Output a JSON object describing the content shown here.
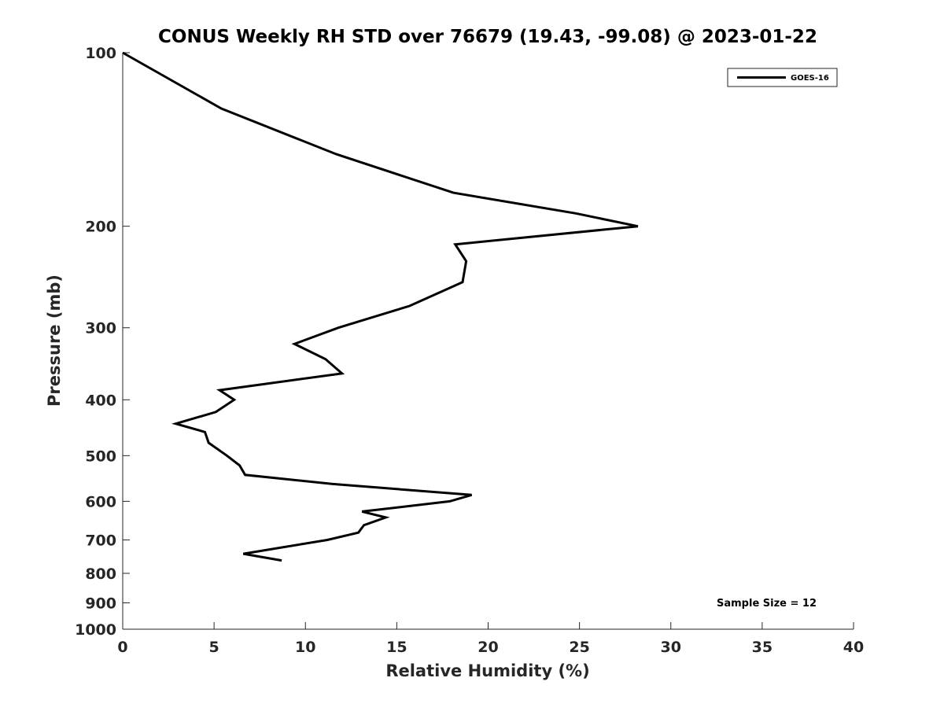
{
  "chart_data": {
    "type": "line",
    "title": "CONUS Weekly RH STD over 76679 (19.43, -99.08) @ 2023-01-22",
    "xlabel": "Relative Humidity (%)",
    "ylabel": "Pressure (mb)",
    "xlim": [
      0,
      40
    ],
    "ylim": [
      1000,
      100
    ],
    "y_scale": "log",
    "y_reversed": true,
    "grid": false,
    "legend_position": "top-right",
    "x_ticks": [
      0,
      5,
      10,
      15,
      20,
      25,
      30,
      35,
      40
    ],
    "y_ticks": [
      100,
      200,
      300,
      400,
      500,
      600,
      700,
      800,
      900,
      1000
    ],
    "series": [
      {
        "name": "GOES-16",
        "color": "#000000",
        "points": [
          {
            "x": 0.0,
            "y": 100
          },
          {
            "x": 5.4,
            "y": 125
          },
          {
            "x": 11.7,
            "y": 150
          },
          {
            "x": 18.1,
            "y": 175
          },
          {
            "x": 24.8,
            "y": 190
          },
          {
            "x": 28.2,
            "y": 200
          },
          {
            "x": 18.2,
            "y": 215
          },
          {
            "x": 18.8,
            "y": 230
          },
          {
            "x": 18.6,
            "y": 250
          },
          {
            "x": 15.7,
            "y": 275
          },
          {
            "x": 11.8,
            "y": 300
          },
          {
            "x": 9.4,
            "y": 320
          },
          {
            "x": 11.1,
            "y": 340
          },
          {
            "x": 12.0,
            "y": 360
          },
          {
            "x": 5.3,
            "y": 385
          },
          {
            "x": 6.1,
            "y": 400
          },
          {
            "x": 5.1,
            "y": 420
          },
          {
            "x": 2.9,
            "y": 440
          },
          {
            "x": 4.5,
            "y": 455
          },
          {
            "x": 4.7,
            "y": 475
          },
          {
            "x": 5.7,
            "y": 500
          },
          {
            "x": 6.4,
            "y": 520
          },
          {
            "x": 6.7,
            "y": 540
          },
          {
            "x": 11.5,
            "y": 560
          },
          {
            "x": 19.1,
            "y": 585
          },
          {
            "x": 17.9,
            "y": 600
          },
          {
            "x": 13.1,
            "y": 625
          },
          {
            "x": 14.4,
            "y": 640
          },
          {
            "x": 13.2,
            "y": 660
          },
          {
            "x": 12.9,
            "y": 680
          },
          {
            "x": 11.2,
            "y": 700
          },
          {
            "x": 6.6,
            "y": 740
          },
          {
            "x": 8.7,
            "y": 760
          }
        ]
      }
    ],
    "annotations": [
      "Sample Size = 12"
    ]
  }
}
